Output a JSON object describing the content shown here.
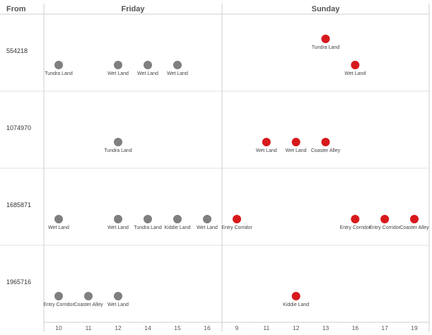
{
  "header": {
    "from_label": "From"
  },
  "colors": {
    "friday": "#7f7f7f",
    "sunday": "#d7191c",
    "grid": "#e2e2e2",
    "divider": "#cfcfcf"
  },
  "chart_data": {
    "type": "scatter",
    "row_header": "From",
    "rows": [
      "554218",
      "1074970",
      "1685871",
      "1965716"
    ],
    "panels": [
      {
        "name": "Friday",
        "x_ticks": [
          "10",
          "11",
          "12",
          "14",
          "15",
          "16"
        ],
        "points": [
          {
            "row": "554218",
            "x": "10",
            "label": "Tundra Land",
            "level": 0
          },
          {
            "row": "554218",
            "x": "12",
            "label": "Wet Land",
            "level": 0
          },
          {
            "row": "554218",
            "x": "14",
            "label": "Wet Land",
            "level": 0
          },
          {
            "row": "554218",
            "x": "15",
            "label": "Wet Land",
            "level": 0
          },
          {
            "row": "1074970",
            "x": "12",
            "label": "Tundra Land",
            "level": 0
          },
          {
            "row": "1685871",
            "x": "10",
            "label": "Wet Land",
            "level": 0
          },
          {
            "row": "1685871",
            "x": "12",
            "label": "Wet Land",
            "level": 0
          },
          {
            "row": "1685871",
            "x": "14",
            "label": "Tundra Land",
            "level": 0
          },
          {
            "row": "1685871",
            "x": "15",
            "label": "Kiddie Land",
            "level": 0
          },
          {
            "row": "1685871",
            "x": "16",
            "label": "Wet Land",
            "level": 0
          },
          {
            "row": "1965716",
            "x": "10",
            "label": "Entry Corridor",
            "level": 0
          },
          {
            "row": "1965716",
            "x": "11",
            "label": "Coaster Alley",
            "level": 0
          },
          {
            "row": "1965716",
            "x": "12",
            "label": "Wet Land",
            "level": 0
          }
        ]
      },
      {
        "name": "Sunday",
        "x_ticks": [
          "9",
          "11",
          "12",
          "13",
          "16",
          "17",
          "19"
        ],
        "points": [
          {
            "row": "554218",
            "x": "13",
            "label": "Tundra Land",
            "level": 1
          },
          {
            "row": "554218",
            "x": "16",
            "label": "Wet Land",
            "level": 0
          },
          {
            "row": "1074970",
            "x": "11",
            "label": "Wet Land",
            "level": 0
          },
          {
            "row": "1074970",
            "x": "12",
            "label": "Wet Land",
            "level": 0
          },
          {
            "row": "1074970",
            "x": "13",
            "label": "Coaster Alley",
            "level": 0
          },
          {
            "row": "1685871",
            "x": "9",
            "label": "Entry Corridor",
            "level": 0
          },
          {
            "row": "1685871",
            "x": "16",
            "label": "Entry Corridor",
            "level": 0
          },
          {
            "row": "1685871",
            "x": "17",
            "label": "Entry Corridor",
            "level": 0
          },
          {
            "row": "1685871",
            "x": "19",
            "label": "Coaster Alley",
            "level": 0
          },
          {
            "row": "1965716",
            "x": "12",
            "label": "Kiddie Land",
            "level": 0
          }
        ]
      }
    ]
  }
}
